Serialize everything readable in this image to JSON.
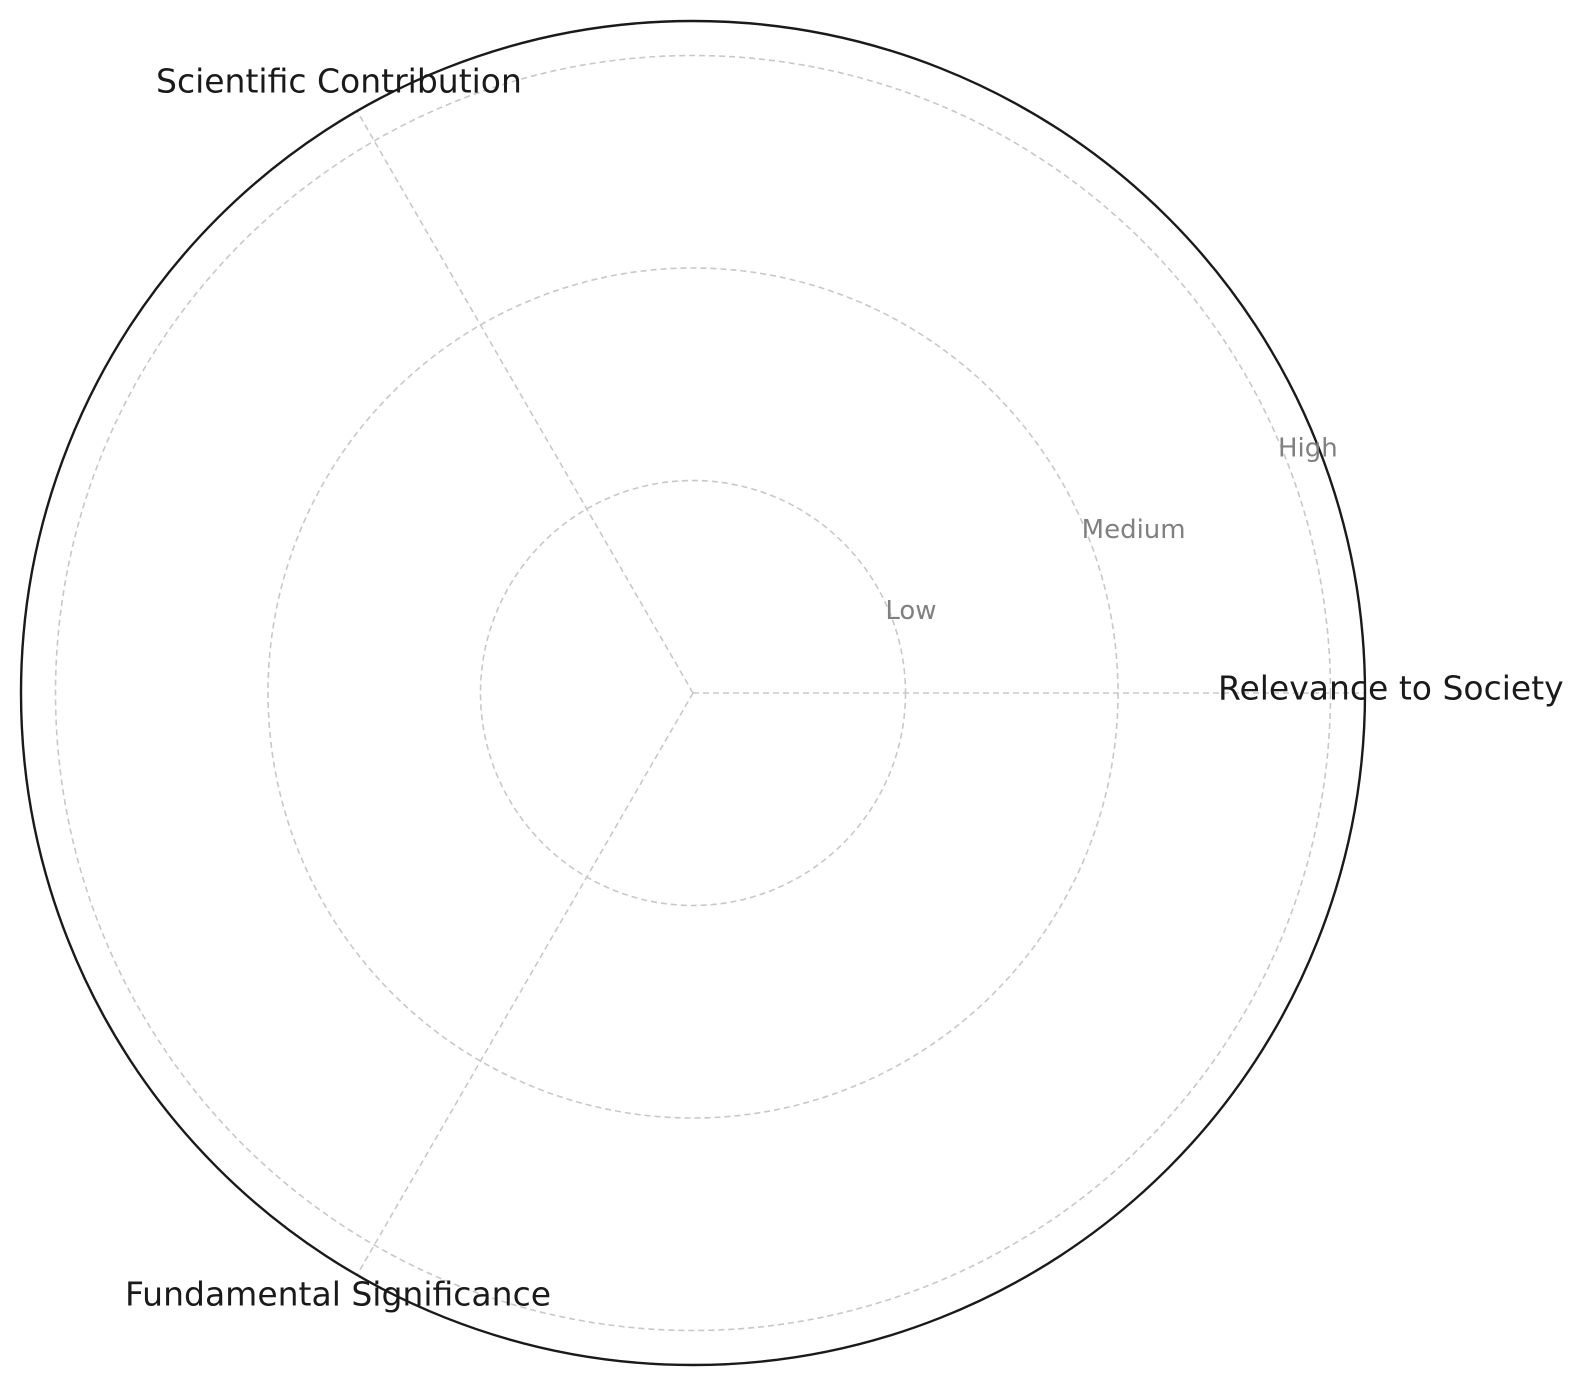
{
  "chart_data": {
    "type": "radar",
    "categories": [
      "Relevance to Society",
      "Scientific Contribution",
      "Fundamental Significance"
    ],
    "rings": [
      {
        "label": "Low",
        "value": 1
      },
      {
        "label": "Medium",
        "value": 2
      },
      {
        "label": "High",
        "value": 3
      }
    ],
    "rlim": [
      0,
      3.16
    ],
    "grid": true,
    "series": [],
    "colors": {
      "grid": "#c8c8c8",
      "frame": "#1a1a1a",
      "axis_label": "#1a1a1a",
      "ring_label": "#808080"
    }
  }
}
